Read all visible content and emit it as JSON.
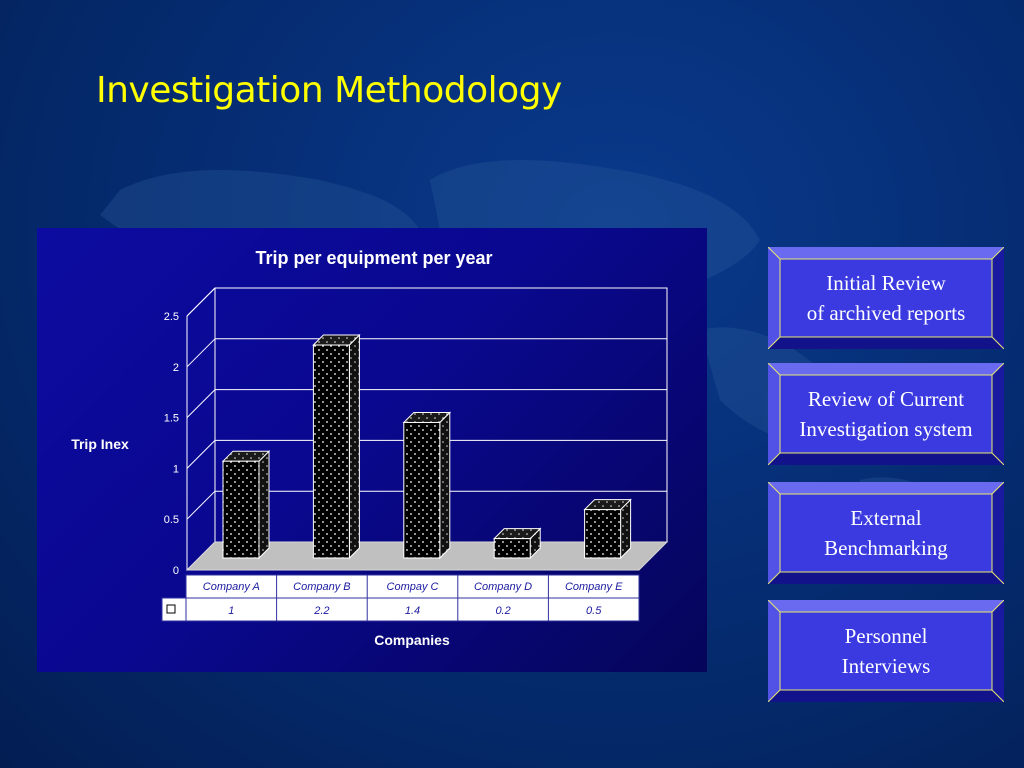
{
  "slide": {
    "title": "Investigation Methodology"
  },
  "colors": {
    "title": "#ffff00",
    "box_fill": "#3a3ae0",
    "box_border": "#e8e870",
    "bar_fill": "#000000",
    "floor_fill": "#c0c0c0",
    "panel_fill": "#0a0890"
  },
  "chart_data": {
    "type": "bar",
    "title": "Trip per equipment per year",
    "xlabel": "Companies",
    "ylabel": "Trip Inex",
    "categories": [
      "Company A",
      "Company B",
      "Compay C",
      "Company D",
      "Company E"
    ],
    "values": [
      1,
      2.2,
      1.4,
      0.2,
      0.5
    ],
    "value_labels": [
      "1",
      "2.2",
      "1.4",
      "0.2",
      "0.5"
    ],
    "ylim": [
      0,
      2.5
    ],
    "yticks": [
      "0",
      "0.5",
      "1",
      "1.5",
      "2",
      "2.5"
    ],
    "grid": true,
    "three_d": true,
    "data_table": true,
    "pattern": "dotted"
  },
  "process_boxes": [
    {
      "text": "Initial Review\nof archived reports",
      "icon": "bevel-box"
    },
    {
      "text": "Review of Current\nInvestigation system",
      "icon": "bevel-box"
    },
    {
      "text": "External\nBenchmarking",
      "icon": "bevel-box"
    },
    {
      "text": "Personnel\nInterviews",
      "icon": "bevel-box"
    }
  ]
}
